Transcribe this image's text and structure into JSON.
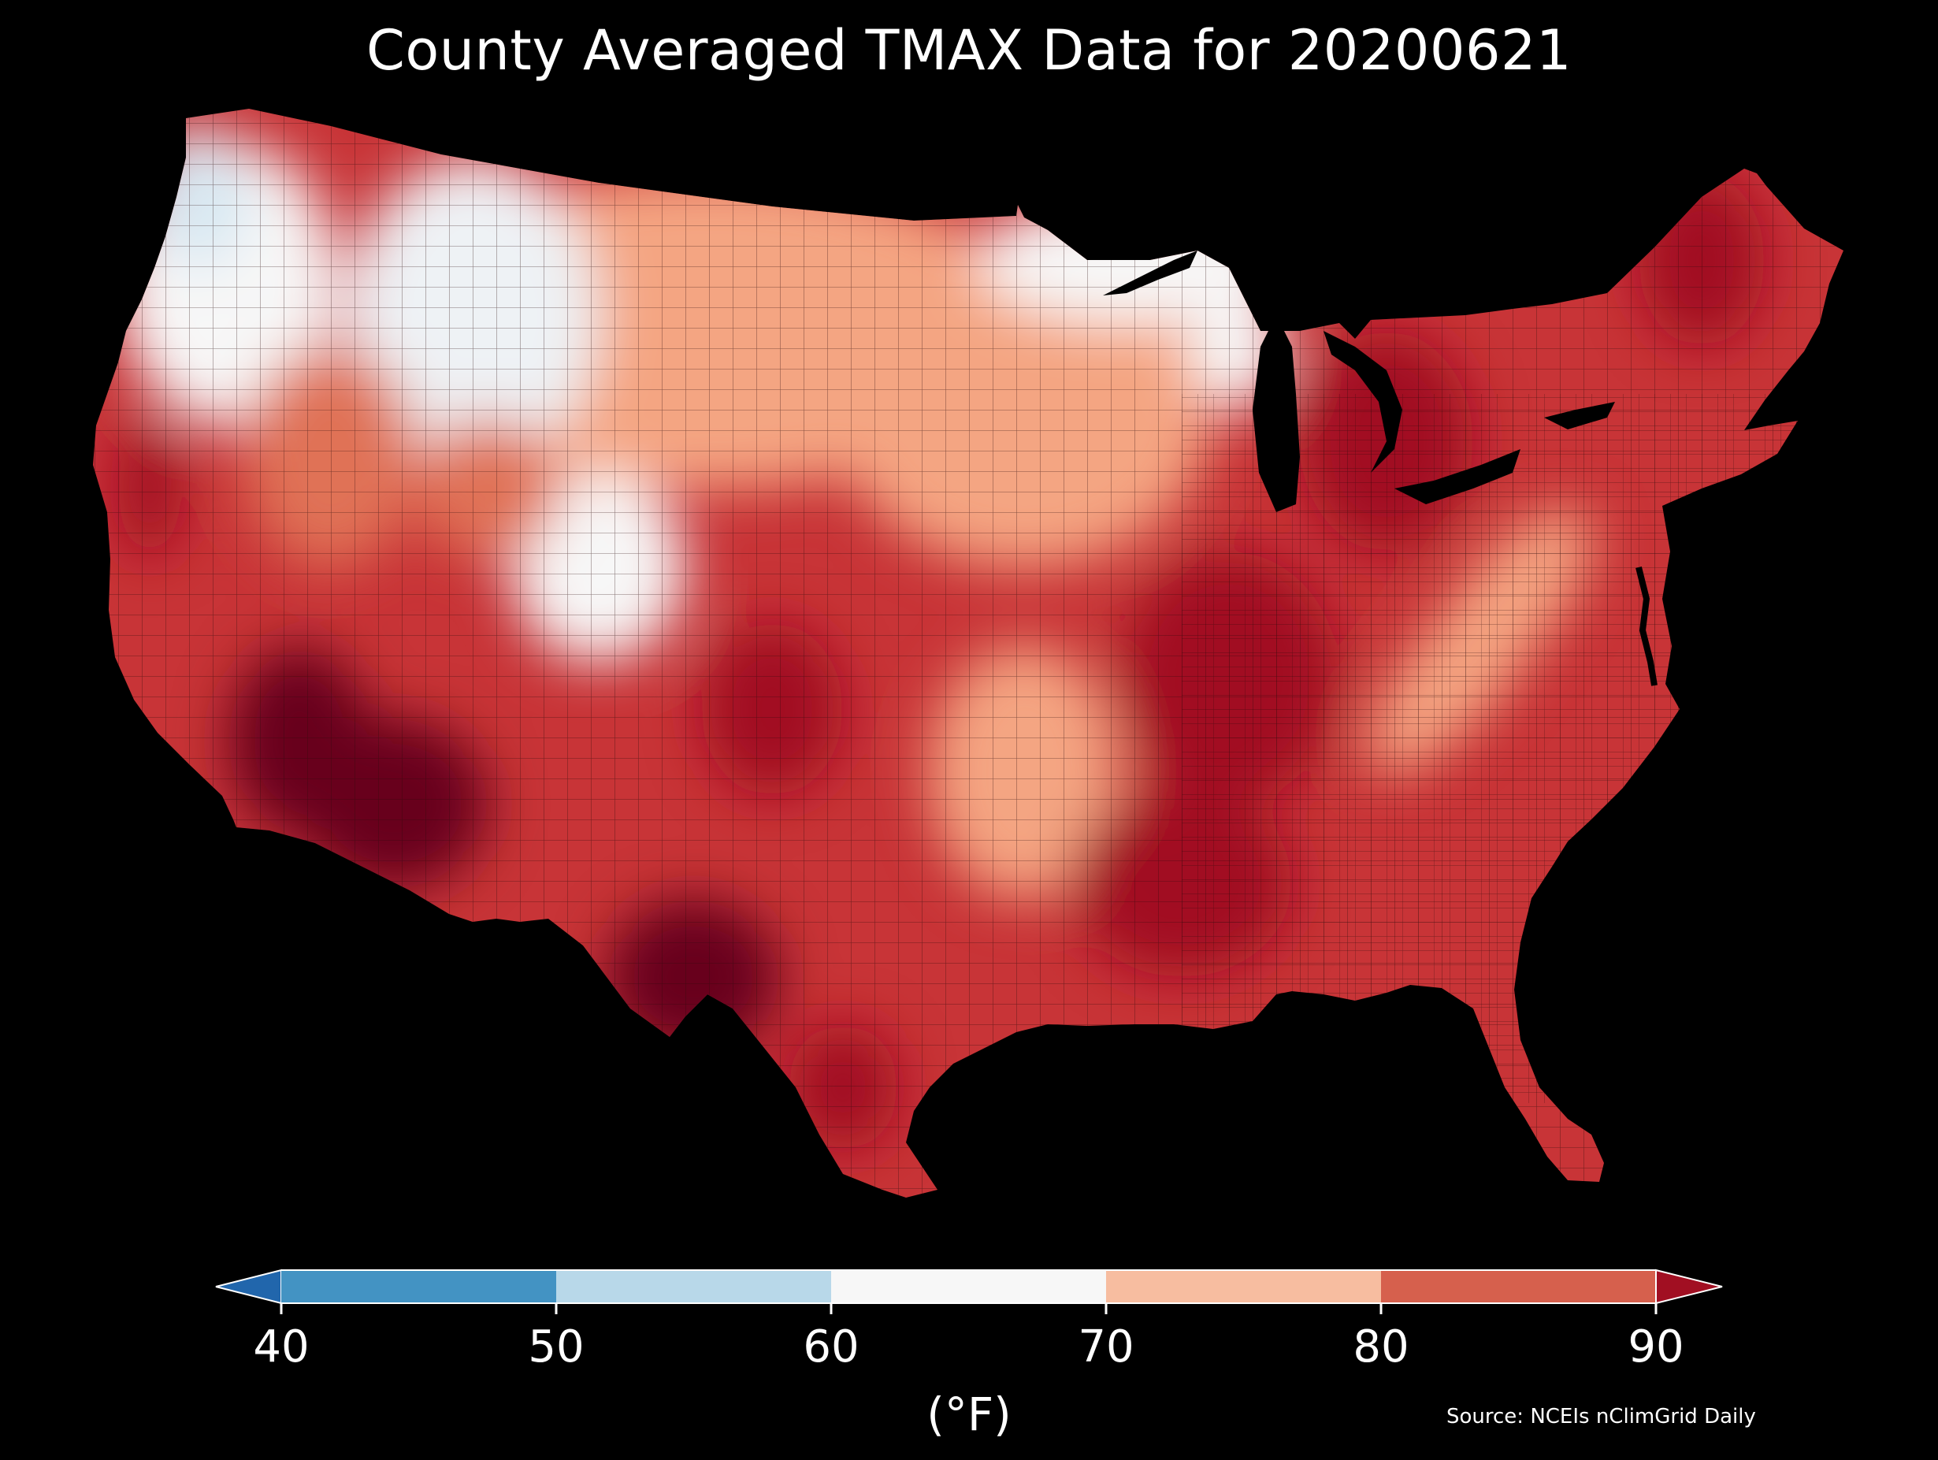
{
  "title": "County Averaged TMAX Data for 20200621",
  "colorbar": {
    "ticks": [
      "40",
      "50",
      "60",
      "70",
      "80",
      "90"
    ],
    "units": "(°F)",
    "bins": [
      {
        "min": 40,
        "max": 50,
        "color": "#4393c3"
      },
      {
        "min": 50,
        "max": 60,
        "color": "#b8d8e9"
      },
      {
        "min": 60,
        "max": 70,
        "color": "#f7f7f7"
      },
      {
        "min": 70,
        "max": 80,
        "color": "#f7bda0"
      },
      {
        "min": 80,
        "max": 90,
        "color": "#d6604d"
      }
    ],
    "under_color": "#2166ac",
    "over_color": "#a10f22"
  },
  "source": "Source: NCEIs nClimGrid Daily",
  "map": {
    "background": "#000000",
    "palette": {
      "very_hot": "#67001f",
      "hot": "#a10f22",
      "warm": "#c83437",
      "mild_warm": "#e07256",
      "mild": "#f4a582",
      "cool": "#f7f7f7",
      "cold": "#d8e8f2"
    }
  }
}
